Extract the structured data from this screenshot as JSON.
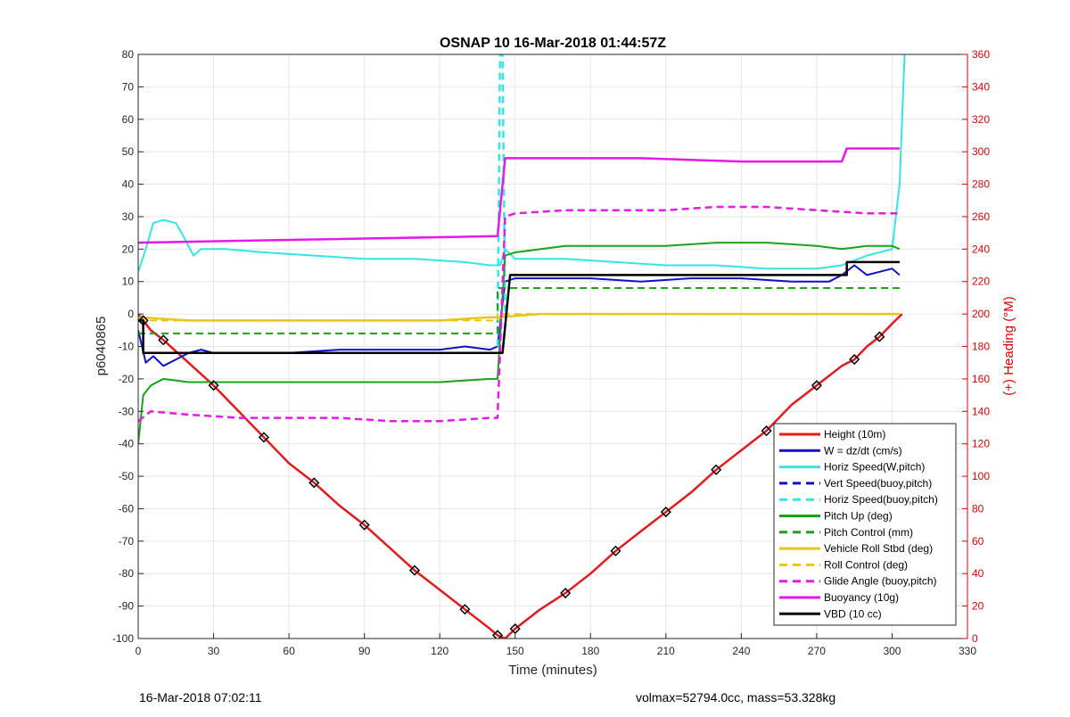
{
  "chart_data": {
    "type": "line",
    "title": "OSNAP 10 16-Mar-2018 01:44:57Z",
    "xlabel": "Time (minutes)",
    "ylabel_left": "p6040865",
    "ylabel_right": "(+) Heading (°M)",
    "xlim": [
      0,
      330
    ],
    "ylim_left": [
      -100,
      80
    ],
    "ylim_right": [
      0,
      360
    ],
    "x_ticks": [
      0,
      30,
      60,
      90,
      120,
      150,
      180,
      210,
      240,
      270,
      300,
      330
    ],
    "y_ticks_left": [
      80,
      70,
      60,
      50,
      40,
      30,
      20,
      10,
      0,
      -10,
      -20,
      -30,
      -40,
      -50,
      -60,
      -70,
      -80,
      -90,
      -100
    ],
    "y_ticks_right": [
      360,
      340,
      320,
      300,
      280,
      260,
      240,
      220,
      200,
      180,
      160,
      140,
      120,
      100,
      80,
      60,
      40,
      20,
      0
    ],
    "grid": true,
    "legend_position": "bottom-right",
    "colors": {
      "red": "#e41a1c",
      "blue": "#1010c8",
      "cyan": "#33e6e6",
      "green": "#1aa31a",
      "yellow": "#e6c619",
      "magenta": "#e619e6",
      "black": "#000000",
      "heading_red": "#e00000"
    },
    "legend": [
      {
        "label": "Height (10m)",
        "color": "#e41a1c",
        "style": "solid"
      },
      {
        "label": "W = dz/dt (cm/s)",
        "color": "#1010c8",
        "style": "solid"
      },
      {
        "label": "Horiz Speed(W,pitch)",
        "color": "#33e6e6",
        "style": "solid"
      },
      {
        "label": "Vert Speed(buoy,pitch)",
        "color": "#1010c8",
        "style": "dashed"
      },
      {
        "label": "Horiz Speed(buoy,pitch)",
        "color": "#33e6e6",
        "style": "dashed"
      },
      {
        "label": "Pitch Up (deg)",
        "color": "#1aa31a",
        "style": "solid"
      },
      {
        "label": "Pitch Control (mm)",
        "color": "#1aa31a",
        "style": "dashed"
      },
      {
        "label": "Vehicle Roll Stbd (deg)",
        "color": "#e6c619",
        "style": "solid"
      },
      {
        "label": "Roll Control (deg)",
        "color": "#e6c619",
        "style": "dashed"
      },
      {
        "label": "Glide Angle (buoy,pitch)",
        "color": "#e619e6",
        "style": "dashed"
      },
      {
        "label": "Buoyancy (10g)",
        "color": "#e619e6",
        "style": "solid"
      },
      {
        "label": "VBD (10 cc)",
        "color": "#000000",
        "style": "solid"
      }
    ],
    "series": [
      {
        "name": "Height (10m)",
        "color": "#e41a1c",
        "style": "solid",
        "width": 2.5,
        "x": [
          0,
          2,
          5,
          10,
          20,
          30,
          40,
          50,
          60,
          70,
          80,
          90,
          100,
          110,
          120,
          130,
          140,
          143,
          146,
          150,
          160,
          170,
          180,
          190,
          200,
          210,
          220,
          230,
          240,
          250,
          260,
          270,
          280,
          285,
          290,
          295,
          300,
          304
        ],
        "y": [
          0,
          -2,
          -5,
          -8,
          -15,
          -22,
          -30,
          -38,
          -46,
          -52,
          -59,
          -65,
          -72,
          -79,
          -85,
          -91,
          -97,
          -99,
          -100,
          -97,
          -91,
          -86,
          -80,
          -73,
          -67,
          -61,
          -55,
          -48,
          -42,
          -36,
          -28,
          -22,
          -16,
          -14,
          -10,
          -7,
          -3,
          0
        ]
      },
      {
        "name": "W = dz/dt (cm/s)",
        "color": "#1010c8",
        "style": "solid",
        "width": 2,
        "x": [
          0,
          3,
          6,
          10,
          15,
          20,
          25,
          30,
          40,
          50,
          60,
          80,
          100,
          120,
          130,
          140,
          143,
          146,
          150,
          160,
          180,
          200,
          220,
          240,
          260,
          275,
          280,
          285,
          290,
          295,
          300,
          303
        ],
        "y": [
          -5,
          -15,
          -13,
          -16,
          -14,
          -12,
          -11,
          -12,
          -12,
          -12,
          -12,
          -11,
          -11,
          -11,
          -10,
          -11,
          -10,
          10,
          11,
          11,
          11,
          10,
          11,
          11,
          10,
          10,
          12,
          15,
          12,
          13,
          14,
          12
        ]
      },
      {
        "name": "Horiz Speed(W,pitch)",
        "color": "#33e6e6",
        "style": "solid",
        "width": 2,
        "x": [
          0,
          3,
          6,
          10,
          15,
          18,
          22,
          25,
          35,
          50,
          70,
          90,
          110,
          130,
          140,
          144,
          146,
          150,
          170,
          190,
          210,
          230,
          250,
          270,
          280,
          290,
          300,
          303,
          305
        ],
        "y": [
          13,
          20,
          28,
          29,
          28,
          24,
          18,
          20,
          20,
          19,
          18,
          17,
          17,
          16,
          15,
          15,
          20,
          17,
          17,
          16,
          15,
          15,
          14,
          14,
          15,
          18,
          20,
          40,
          80
        ]
      },
      {
        "name": "Horiz Speed(buoy,pitch)",
        "color": "#33e6e6",
        "style": "dashed",
        "width": 2.5,
        "x": [
          143,
          144,
          145,
          146
        ],
        "y": [
          -10,
          80,
          80,
          0
        ]
      },
      {
        "name": "Pitch Up (deg)",
        "color": "#1aa31a",
        "style": "solid",
        "width": 2,
        "x": [
          0,
          2,
          5,
          10,
          20,
          40,
          60,
          80,
          100,
          120,
          140,
          143,
          146,
          150,
          170,
          190,
          210,
          230,
          250,
          270,
          280,
          290,
          300,
          303
        ],
        "y": [
          -40,
          -25,
          -22,
          -20,
          -21,
          -21,
          -21,
          -21,
          -21,
          -21,
          -20,
          -20,
          18,
          19,
          21,
          21,
          21,
          22,
          22,
          21,
          20,
          21,
          21,
          20
        ]
      },
      {
        "name": "Pitch Control (mm)",
        "color": "#1aa31a",
        "style": "dashed",
        "width": 2,
        "x": [
          0,
          143,
          143,
          150,
          303
        ],
        "y": [
          -6,
          -6,
          8,
          8,
          8
        ]
      },
      {
        "name": "Vehicle Roll Stbd (deg)",
        "color": "#e6c619",
        "style": "solid",
        "width": 2.5,
        "x": [
          0,
          20,
          40,
          60,
          80,
          100,
          120,
          140,
          143,
          160,
          180,
          200,
          220,
          240,
          260,
          280,
          303
        ],
        "y": [
          -1,
          -2,
          -2,
          -2,
          -2,
          -2,
          -2,
          -1,
          -1,
          0,
          0,
          0,
          0,
          0,
          0,
          0,
          0
        ]
      },
      {
        "name": "Roll Control (deg)",
        "color": "#e6c619",
        "style": "dashed",
        "width": 2,
        "x": [
          0,
          143,
          143,
          303
        ],
        "y": [
          -2,
          -2,
          0,
          0
        ]
      },
      {
        "name": "Glide Angle (buoy,pitch)",
        "color": "#e619e6",
        "style": "dashed",
        "width": 2.5,
        "x": [
          0,
          5,
          20,
          40,
          60,
          80,
          100,
          120,
          140,
          143,
          146,
          150,
          170,
          190,
          210,
          230,
          250,
          270,
          290,
          303
        ],
        "y": [
          -33,
          -30,
          -31,
          -32,
          -32,
          -32,
          -33,
          -33,
          -32,
          -32,
          30,
          31,
          32,
          32,
          32,
          33,
          33,
          32,
          31,
          31
        ]
      },
      {
        "name": "Buoyancy (10g)",
        "color": "#e619e6",
        "style": "solid",
        "width": 2.5,
        "x": [
          0,
          143,
          146,
          160,
          200,
          240,
          280,
          282,
          303
        ],
        "y": [
          22,
          24,
          48,
          48,
          48,
          47,
          47,
          51,
          51
        ]
      },
      {
        "name": "VBD (10 cc)",
        "color": "#000000",
        "style": "solid",
        "width": 2.5,
        "x": [
          0,
          2,
          2,
          145,
          148,
          148,
          282,
          282,
          303
        ],
        "y": [
          -2,
          -2,
          -12,
          -12,
          12,
          12,
          12,
          16,
          16
        ]
      }
    ]
  },
  "footer": {
    "left": "16-Mar-2018 07:02:11",
    "right": "volmax=52794.0cc, mass=53.328kg"
  }
}
